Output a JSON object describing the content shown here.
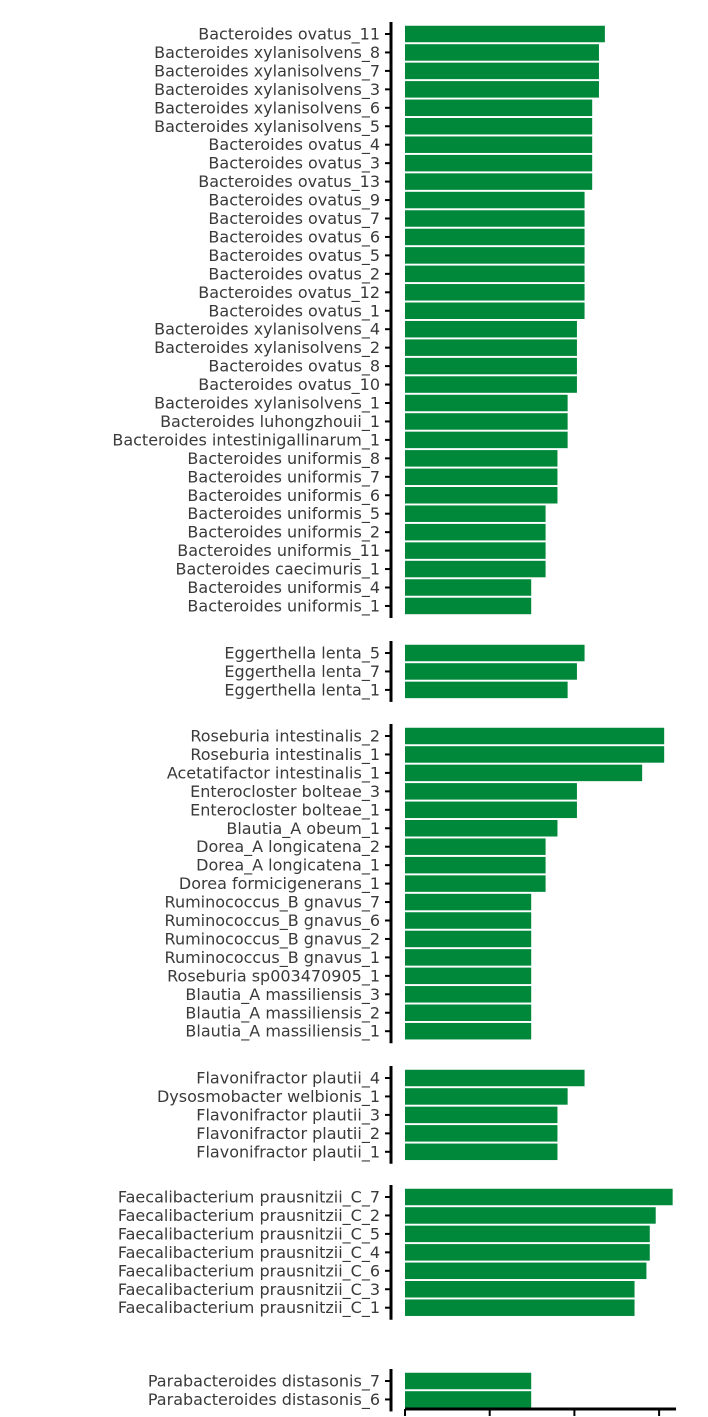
{
  "chart_data": {
    "type": "bar",
    "orientation": "horizontal",
    "bar_color": "#00883a",
    "axis_color": "#000000",
    "label_color": "#3a3a3a",
    "title": "",
    "xlabel": "",
    "ylabel": "",
    "xlim": [
      0,
      3.2
    ],
    "x_ticks": [
      0,
      1,
      2,
      3
    ],
    "grid": false,
    "legend": "none",
    "panels": [
      {
        "categories": [
          "Bacteroides ovatus_11",
          "Bacteroides xylanisolvens_8",
          "Bacteroides xylanisolvens_7",
          "Bacteroides xylanisolvens_3",
          "Bacteroides xylanisolvens_6",
          "Bacteroides xylanisolvens_5",
          "Bacteroides ovatus_4",
          "Bacteroides ovatus_3",
          "Bacteroides ovatus_13",
          "Bacteroides ovatus_9",
          "Bacteroides ovatus_7",
          "Bacteroides ovatus_6",
          "Bacteroides ovatus_5",
          "Bacteroides ovatus_2",
          "Bacteroides ovatus_12",
          "Bacteroides ovatus_1",
          "Bacteroides xylanisolvens_4",
          "Bacteroides xylanisolvens_2",
          "Bacteroides ovatus_8",
          "Bacteroides ovatus_10",
          "Bacteroides xylanisolvens_1",
          "Bacteroides luhongzhouii_1",
          "Bacteroides intestinigallinarum_1",
          "Bacteroides uniformis_8",
          "Bacteroides uniformis_7",
          "Bacteroides uniformis_6",
          "Bacteroides uniformis_5",
          "Bacteroides uniformis_2",
          "Bacteroides uniformis_11",
          "Bacteroides caecimuris_1",
          "Bacteroides uniformis_4",
          "Bacteroides uniformis_1"
        ],
        "values": [
          2.36,
          2.29,
          2.29,
          2.29,
          2.21,
          2.21,
          2.21,
          2.21,
          2.21,
          2.12,
          2.12,
          2.12,
          2.12,
          2.12,
          2.12,
          2.12,
          2.03,
          2.03,
          2.03,
          2.03,
          1.92,
          1.92,
          1.92,
          1.8,
          1.8,
          1.8,
          1.66,
          1.66,
          1.66,
          1.66,
          1.49,
          1.49
        ]
      },
      {
        "categories": [
          "Eggerthella lenta_5",
          "Eggerthella lenta_7",
          "Eggerthella lenta_1"
        ],
        "values": [
          2.12,
          2.03,
          1.92
        ]
      },
      {
        "categories": [
          "Roseburia intestinalis_2",
          "Roseburia intestinalis_1",
          "Acetatifactor intestinalis_1",
          "Enterocloster bolteae_3",
          "Enterocloster bolteae_1",
          "Blautia_A obeum_1",
          "Dorea_A longicatena_2",
          "Dorea_A longicatena_1",
          "Dorea formicigenerans_1",
          "Ruminococcus_B gnavus_7",
          "Ruminococcus_B gnavus_6",
          "Ruminococcus_B gnavus_2",
          "Ruminococcus_B gnavus_1",
          "Roseburia sp003470905_1",
          "Blautia_A massiliensis_3",
          "Blautia_A massiliensis_2",
          "Blautia_A massiliensis_1"
        ],
        "values": [
          3.06,
          3.06,
          2.8,
          2.03,
          2.03,
          1.8,
          1.66,
          1.66,
          1.66,
          1.49,
          1.49,
          1.49,
          1.49,
          1.49,
          1.49,
          1.49,
          1.49
        ]
      },
      {
        "categories": [
          "Flavonifractor plautii_4",
          "Dysosmobacter welbionis_1",
          "Flavonifractor plautii_3",
          "Flavonifractor plautii_2",
          "Flavonifractor plautii_1"
        ],
        "values": [
          2.12,
          1.92,
          1.8,
          1.8,
          1.8
        ]
      },
      {
        "categories": [
          "Faecalibacterium prausnitzii_C_7",
          "Faecalibacterium prausnitzii_C_2",
          "Faecalibacterium prausnitzii_C_5",
          "Faecalibacterium prausnitzii_C_4",
          "Faecalibacterium prausnitzii_C_6",
          "Faecalibacterium prausnitzii_C_3",
          "Faecalibacterium prausnitzii_C_1"
        ],
        "values": [
          3.16,
          2.96,
          2.89,
          2.89,
          2.85,
          2.71,
          2.71
        ]
      },
      {
        "categories": [
          "Parabacteroides distasonis_7",
          "Parabacteroides distasonis_6"
        ],
        "values": [
          1.49,
          1.49
        ]
      }
    ]
  }
}
